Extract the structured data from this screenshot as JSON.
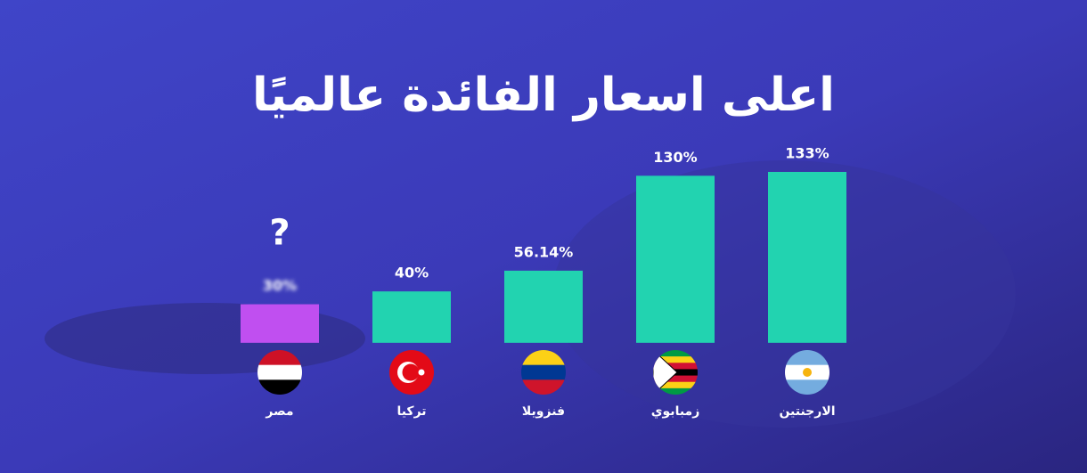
{
  "chart_data": {
    "type": "bar",
    "title": "اعلى اسعار الفائدة عالميًا",
    "categories": [
      "الارجنتين",
      "زمبابوي",
      "فنزويلا",
      "تركيا",
      "مصر"
    ],
    "values": [
      133,
      130,
      56.14,
      40,
      30
    ],
    "value_labels": [
      "133%",
      "130%",
      "56.14%",
      "40%",
      "30%"
    ],
    "colors": [
      "#22d3b0",
      "#22d3b0",
      "#22d3b0",
      "#22d3b0",
      "#c04ff0"
    ],
    "annotation": "?",
    "ylim": [
      -23,
      133
    ]
  }
}
